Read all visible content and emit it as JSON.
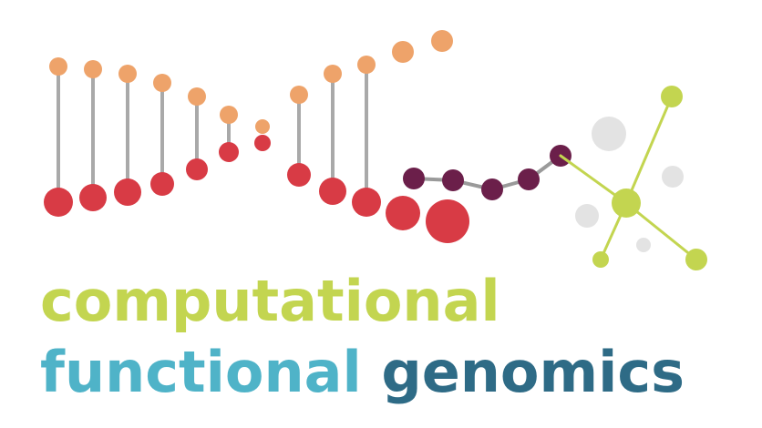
{
  "logo": {
    "line1": "computational",
    "line2_word1": "functional",
    "line2_word2": "genomics"
  },
  "colors": {
    "computational": "#c3d550",
    "functional": "#4fb3c8",
    "genomics": "#2e6b86",
    "dna_top_dots": "#eea36a",
    "dna_bottom_dots": "#d83b45",
    "dna_stems": "#a9a9a9",
    "chain_dots": "#6b1f4a",
    "chain_line": "#9a9a9a",
    "network": "#c3d550",
    "background_circles": "#e3e3e3"
  },
  "icons": {
    "graphic": "dna-to-network-icon"
  }
}
